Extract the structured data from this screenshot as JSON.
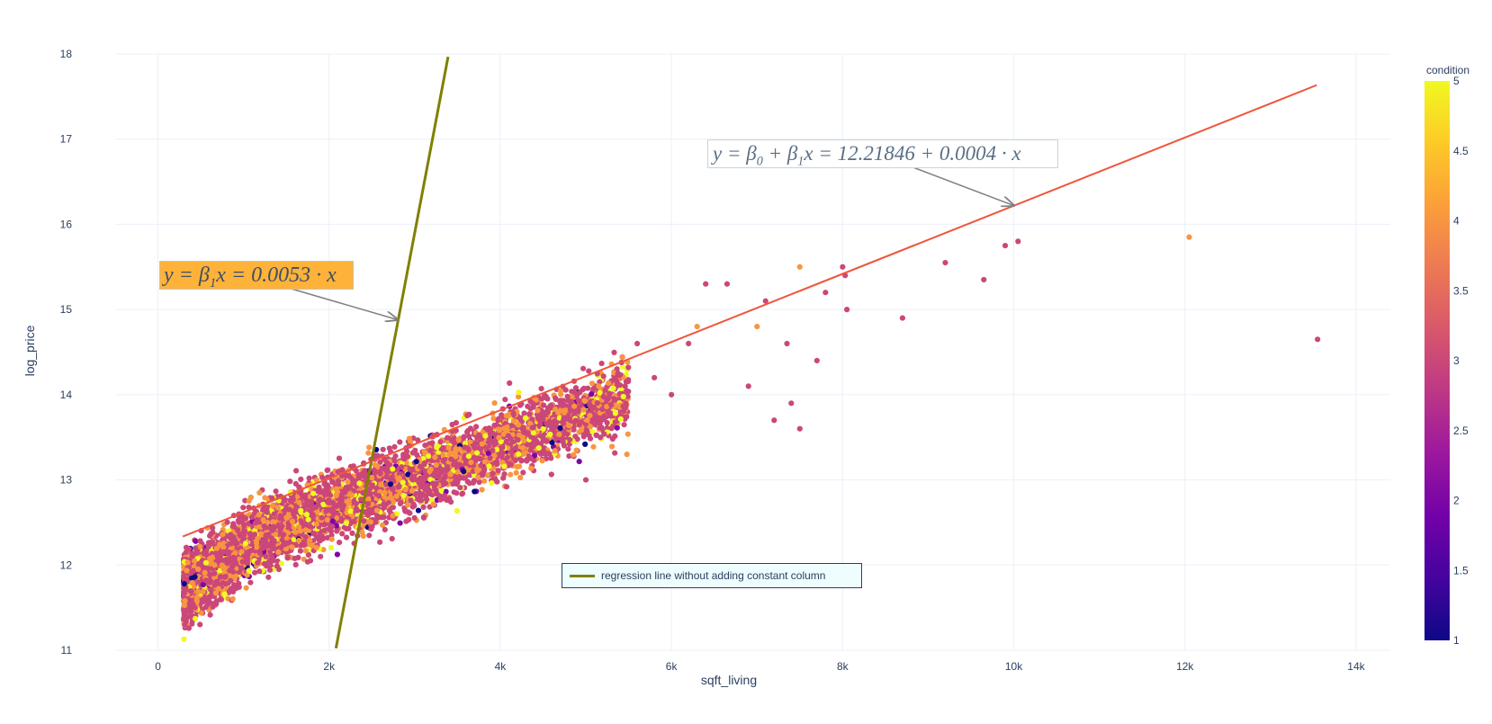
{
  "chart_data": {
    "type": "scatter",
    "xlabel": "sqft_living",
    "ylabel": "log_price",
    "xlim": [
      -500,
      14400
    ],
    "ylim": [
      11,
      18
    ],
    "xticks": [
      {
        "v": 0,
        "label": "0"
      },
      {
        "v": 2000,
        "label": "2k"
      },
      {
        "v": 4000,
        "label": "4k"
      },
      {
        "v": 6000,
        "label": "6k"
      },
      {
        "v": 8000,
        "label": "8k"
      },
      {
        "v": 10000,
        "label": "10k"
      },
      {
        "v": 12000,
        "label": "12k"
      },
      {
        "v": 14000,
        "label": "14k"
      }
    ],
    "yticks": [
      11,
      12,
      13,
      14,
      15,
      16,
      17,
      18
    ],
    "grid": true,
    "colorbar": {
      "title": "condition",
      "range": [
        1,
        5
      ],
      "ticks": [
        "1",
        "1.5",
        "2",
        "2.5",
        "3",
        "3.5",
        "4",
        "4.5",
        "5"
      ],
      "colorscale": [
        "#0d0887",
        "#46039f",
        "#7201a8",
        "#9c179e",
        "#bd3786",
        "#d8576b",
        "#ed7953",
        "#fb9f3a",
        "#fdca26",
        "#f0f921"
      ]
    },
    "series": [
      {
        "type": "scatter",
        "color_by": "condition",
        "cloud": {
          "count": 5200,
          "x_range": [
            300,
            5500
          ],
          "log_price_at_x0": 11.9,
          "slope_per_1000": 0.38,
          "spread": 0.45
        },
        "outliers": [
          [
            5000,
            13.0
          ],
          [
            5480,
            13.3
          ],
          [
            5600,
            14.6
          ],
          [
            5800,
            14.2
          ],
          [
            6000,
            14.0
          ],
          [
            6200,
            14.6
          ],
          [
            6300,
            14.8
          ],
          [
            6400,
            15.3
          ],
          [
            6650,
            15.3
          ],
          [
            6900,
            14.1
          ],
          [
            7000,
            14.8
          ],
          [
            7100,
            15.1
          ],
          [
            7200,
            13.7
          ],
          [
            7350,
            14.6
          ],
          [
            7400,
            13.9
          ],
          [
            7500,
            15.5
          ],
          [
            7500,
            13.6
          ],
          [
            7700,
            14.4
          ],
          [
            7800,
            15.2
          ],
          [
            8000,
            15.5
          ],
          [
            8030,
            15.4
          ],
          [
            8050,
            15.0
          ],
          [
            8700,
            14.9
          ],
          [
            9200,
            15.55
          ],
          [
            9650,
            15.35
          ],
          [
            9900,
            15.75
          ],
          [
            10050,
            15.8
          ],
          [
            12050,
            15.85
          ],
          [
            13550,
            14.65
          ]
        ],
        "outlier_conditions": [
          3,
          4,
          3,
          3,
          3,
          3,
          4,
          3,
          3,
          3,
          4,
          3,
          3,
          3,
          3,
          4,
          3,
          3,
          3,
          3,
          3,
          3,
          3,
          3,
          3,
          3,
          3,
          4,
          3
        ]
      },
      {
        "name": "regression line without adding constant column",
        "type": "line",
        "color": "#808000",
        "equation": {
          "intercept": 0,
          "slope": 0.0053
        },
        "x": [
          2080,
          3390
        ]
      },
      {
        "type": "line",
        "color": "#EF553B",
        "equation": {
          "intercept": 12.21846,
          "slope": 0.0004
        },
        "x": [
          290,
          13540
        ]
      }
    ],
    "annotations": [
      {
        "id": "no_const",
        "text": "y = β₁x = 0.0053 · x",
        "arrow_to": [
          2800,
          14.88
        ]
      },
      {
        "id": "const",
        "text": "y = β₀ + β₁x = 12.21846 + 0.0004 · x",
        "arrow_to": [
          10000,
          16.22
        ]
      }
    ]
  },
  "annotations_text": {
    "no_const": {
      "pre": "y = β",
      "sub": "1",
      "post": "x = 0.0053 · x"
    },
    "const": {
      "pre1": "y = β",
      "sub1": "0",
      "mid": " + β",
      "sub2": "1",
      "post": "x = 12.21846 + 0.0004 · x"
    }
  },
  "legend": {
    "position": "bottom-center",
    "label": "regression line without adding constant column"
  },
  "colors": {
    "annotation_fill_no_const": "#FFB23A",
    "legend_bg": "#eefdfd",
    "grid": "#ebf0f8"
  }
}
